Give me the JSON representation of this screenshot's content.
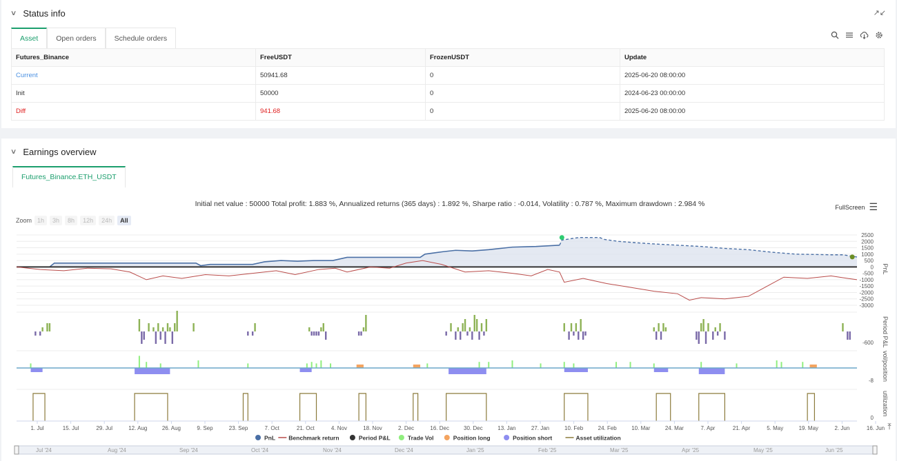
{
  "status": {
    "title": "Status info",
    "tabs": [
      "Asset",
      "Open orders",
      "Schedule orders"
    ],
    "columns": [
      "Futures_Binance",
      "FreeUSDT",
      "FrozenUSDT",
      "Update"
    ],
    "rows": [
      {
        "label": "Current",
        "free": "50941.68",
        "frozen": "0",
        "update": "2025-06-20 08:00:00"
      },
      {
        "label": "Init",
        "free": "50000",
        "frozen": "0",
        "update": "2024-06-23 00:00:00"
      },
      {
        "label": "Diff",
        "free": "941.68",
        "frozen": "0",
        "update": "2025-06-20 08:00:00"
      }
    ]
  },
  "earnings": {
    "title": "Earnings overview",
    "tab": "Futures_Binance.ETH_USDT",
    "summary": "Initial net value : 50000 Total profit: 1.883 %, Annualized returns (365 days) : 1.892 %, Sharpe ratio : -0.014, Volatility : 0.787 %, Maximum drawdown : 2.984 %",
    "fullscreen": "FullScreen",
    "zoom_label": "Zoom",
    "zoom_options": [
      "1h",
      "3h",
      "8h",
      "12h",
      "24h",
      "All"
    ]
  },
  "colors": {
    "pnl": "#4a6fa5",
    "benchmark": "#b94a48",
    "period_pos": "#8db255",
    "period_neg": "#7a6aa8",
    "trade_vol": "#90ee7e",
    "pos_long": "#f4a460",
    "pos_short": "#8e8ef0",
    "util": "#8b7a3a",
    "accent": "#1a9e6c"
  },
  "chart_data": {
    "type": "line",
    "x_ticks": [
      "1. Jul",
      "15. Jul",
      "29. Jul",
      "12. Aug",
      "26. Aug",
      "9. Sep",
      "23. Sep",
      "7. Oct",
      "21. Oct",
      "4. Nov",
      "18. Nov",
      "2. Dec",
      "16. Dec",
      "30. Dec",
      "13. Jan",
      "27. Jan",
      "10. Feb",
      "24. Feb",
      "10. Mar",
      "24. Mar",
      "7. Apr",
      "21. Apr",
      "5. May",
      "19. May",
      "2. Jun",
      "16. Jun"
    ],
    "nav_ticks": [
      "Jul '24",
      "Aug '24",
      "Sep '24",
      "Oct '24",
      "Nov '24",
      "Dec '24",
      "Jan '25",
      "Feb '25",
      "Mar '25",
      "Apr '25",
      "May '25",
      "Jun '25"
    ],
    "pnl_ticks": [
      "2500",
      "2000",
      "1500",
      "1000",
      "500",
      "0",
      "-500",
      "-1000",
      "-1500",
      "-2000",
      "-2500",
      "-3000"
    ],
    "pnl_axis_label": "PnL",
    "period_axis_label": "Period P&L",
    "period_tick": "-600",
    "vol_axis_label": "vol/position",
    "vol_tick": "-8",
    "util_axis_label": "utilization",
    "util_tick": "0",
    "pnl_series": [
      [
        0,
        0
      ],
      [
        14,
        0
      ],
      [
        16,
        300
      ],
      [
        63,
        300
      ],
      [
        76,
        300
      ],
      [
        78,
        100
      ],
      [
        82,
        200
      ],
      [
        100,
        200
      ],
      [
        105,
        400
      ],
      [
        112,
        500
      ],
      [
        119,
        450
      ],
      [
        126,
        500
      ],
      [
        134,
        500
      ],
      [
        140,
        750
      ],
      [
        171,
        750
      ],
      [
        173,
        1000
      ],
      [
        181,
        1200
      ],
      [
        186,
        1300
      ],
      [
        193,
        1250
      ],
      [
        200,
        1350
      ],
      [
        210,
        1550
      ],
      [
        220,
        1600
      ],
      [
        230,
        1700
      ],
      [
        231,
        2100
      ],
      [
        238,
        2300
      ],
      [
        247,
        2300
      ],
      [
        249,
        2150
      ],
      [
        255,
        2000
      ],
      [
        262,
        1900
      ],
      [
        270,
        1800
      ],
      [
        280,
        1700
      ],
      [
        290,
        1600
      ],
      [
        300,
        1450
      ],
      [
        310,
        1350
      ],
      [
        320,
        1150
      ],
      [
        330,
        1000
      ],
      [
        345,
        950
      ],
      [
        350,
        950
      ],
      [
        356,
        780
      ]
    ],
    "pnl_dashed_from": 230,
    "benchmark_series": [
      [
        0,
        0
      ],
      [
        10,
        -200
      ],
      [
        20,
        -300
      ],
      [
        30,
        -100
      ],
      [
        40,
        -150
      ],
      [
        48,
        -400
      ],
      [
        55,
        -1000
      ],
      [
        62,
        -700
      ],
      [
        70,
        -900
      ],
      [
        80,
        -600
      ],
      [
        90,
        -700
      ],
      [
        100,
        -500
      ],
      [
        110,
        -300
      ],
      [
        118,
        -600
      ],
      [
        128,
        -200
      ],
      [
        135,
        -100
      ],
      [
        140,
        -400
      ],
      [
        150,
        0
      ],
      [
        158,
        -100
      ],
      [
        165,
        300
      ],
      [
        172,
        500
      ],
      [
        180,
        200
      ],
      [
        190,
        -400
      ],
      [
        200,
        -300
      ],
      [
        210,
        -500
      ],
      [
        218,
        -700
      ],
      [
        225,
        -200
      ],
      [
        230,
        -400
      ],
      [
        232,
        -1200
      ],
      [
        240,
        -900
      ],
      [
        250,
        -1300
      ],
      [
        260,
        -1600
      ],
      [
        270,
        -1900
      ],
      [
        280,
        -2100
      ],
      [
        285,
        -2600
      ],
      [
        290,
        -2400
      ],
      [
        300,
        -2500
      ],
      [
        310,
        -2300
      ],
      [
        318,
        -1500
      ],
      [
        325,
        -800
      ],
      [
        335,
        -900
      ],
      [
        345,
        -700
      ],
      [
        352,
        -900
      ],
      [
        356,
        -1000
      ]
    ],
    "trade_markers": [
      {
        "x": 231,
        "y": 2300,
        "color": "#2ecc71"
      },
      {
        "x": 354,
        "y": 780,
        "color": "#6b8e23"
      }
    ],
    "period_bars": [
      [
        8,
        -1
      ],
      [
        10,
        -1
      ],
      [
        11,
        1
      ],
      [
        13,
        2
      ],
      [
        14,
        2
      ],
      [
        52,
        3
      ],
      [
        53,
        -3
      ],
      [
        54,
        -2
      ],
      [
        56,
        2
      ],
      [
        58,
        1
      ],
      [
        59,
        -3
      ],
      [
        60,
        2
      ],
      [
        61,
        -2
      ],
      [
        62,
        1
      ],
      [
        63,
        -3
      ],
      [
        64,
        2
      ],
      [
        65,
        1
      ],
      [
        66,
        -3
      ],
      [
        67,
        2
      ],
      [
        68,
        5
      ],
      [
        75,
        2
      ],
      [
        98,
        -1
      ],
      [
        100,
        -1
      ],
      [
        101,
        2
      ],
      [
        124,
        1
      ],
      [
        125,
        -1
      ],
      [
        126,
        -1
      ],
      [
        127,
        -1
      ],
      [
        128,
        -1
      ],
      [
        129,
        1
      ],
      [
        130,
        2
      ],
      [
        131,
        -2
      ],
      [
        145,
        -1
      ],
      [
        146,
        -1
      ],
      [
        147,
        1
      ],
      [
        148,
        4
      ],
      [
        182,
        -1
      ],
      [
        184,
        2
      ],
      [
        186,
        -2
      ],
      [
        187,
        1
      ],
      [
        188,
        -2
      ],
      [
        189,
        2
      ],
      [
        190,
        3
      ],
      [
        191,
        -1
      ],
      [
        192,
        1
      ],
      [
        193,
        -2
      ],
      [
        194,
        4
      ],
      [
        195,
        3
      ],
      [
        196,
        -2
      ],
      [
        197,
        2
      ],
      [
        198,
        -1
      ],
      [
        199,
        3
      ],
      [
        232,
        2
      ],
      [
        234,
        -2
      ],
      [
        235,
        2
      ],
      [
        236,
        -1
      ],
      [
        237,
        2
      ],
      [
        238,
        -2
      ],
      [
        239,
        3
      ],
      [
        240,
        -2
      ],
      [
        241,
        -1
      ],
      [
        270,
        1
      ],
      [
        271,
        -2
      ],
      [
        272,
        2
      ],
      [
        273,
        -2
      ],
      [
        274,
        2
      ],
      [
        275,
        1
      ],
      [
        288,
        -2
      ],
      [
        289,
        -3
      ],
      [
        290,
        2
      ],
      [
        291,
        3
      ],
      [
        292,
        -3
      ],
      [
        293,
        2
      ],
      [
        295,
        -2
      ],
      [
        296,
        1
      ],
      [
        297,
        -1
      ],
      [
        298,
        2
      ],
      [
        300,
        -2
      ],
      [
        350,
        2
      ],
      [
        352,
        -2
      ],
      [
        353,
        -2
      ]
    ],
    "vol_bars": [
      [
        6,
        3
      ],
      [
        52,
        8
      ],
      [
        55,
        4
      ],
      [
        61,
        3
      ],
      [
        77,
        5
      ],
      [
        98,
        3
      ],
      [
        123,
        3
      ],
      [
        125,
        4
      ],
      [
        127,
        3
      ],
      [
        129,
        5
      ],
      [
        133,
        3
      ],
      [
        174,
        3
      ],
      [
        196,
        4
      ],
      [
        200,
        4
      ],
      [
        210,
        5
      ],
      [
        222,
        3
      ],
      [
        232,
        4
      ],
      [
        236,
        3
      ],
      [
        254,
        4
      ],
      [
        260,
        4
      ],
      [
        270,
        3
      ],
      [
        290,
        4
      ],
      [
        305,
        3
      ],
      [
        322,
        5
      ],
      [
        324,
        4
      ],
      [
        333,
        4
      ]
    ],
    "short_blocks": [
      [
        6,
        11
      ],
      [
        50,
        65
      ],
      [
        120,
        125
      ],
      [
        183,
        199
      ],
      [
        232,
        242
      ],
      [
        270,
        276
      ],
      [
        289,
        300
      ]
    ],
    "long_blocks": [
      [
        144,
        147
      ],
      [
        168,
        171
      ],
      [
        336,
        339
      ]
    ],
    "util_blocks": [
      [
        7,
        12
      ],
      [
        50,
        64
      ],
      [
        96,
        98
      ],
      [
        120,
        127
      ],
      [
        145,
        148
      ],
      [
        168,
        170
      ],
      [
        182,
        199
      ],
      [
        232,
        242
      ],
      [
        271,
        277
      ],
      [
        289,
        300
      ],
      [
        335,
        338
      ]
    ],
    "legend": [
      {
        "name": "PnL",
        "kind": "dot",
        "color": "#4a6fa5"
      },
      {
        "name": "Benchmark return",
        "kind": "line",
        "color": "#b94a48"
      },
      {
        "name": "Period P&L",
        "kind": "dot",
        "color": "#333333"
      },
      {
        "name": "Trade Vol",
        "kind": "dot",
        "color": "#90ee7e"
      },
      {
        "name": "Position long",
        "kind": "dot",
        "color": "#f4a460"
      },
      {
        "name": "Position short",
        "kind": "dot",
        "color": "#8e8ef0"
      },
      {
        "name": "Asset utilization",
        "kind": "line",
        "color": "#8b7a3a"
      }
    ]
  }
}
